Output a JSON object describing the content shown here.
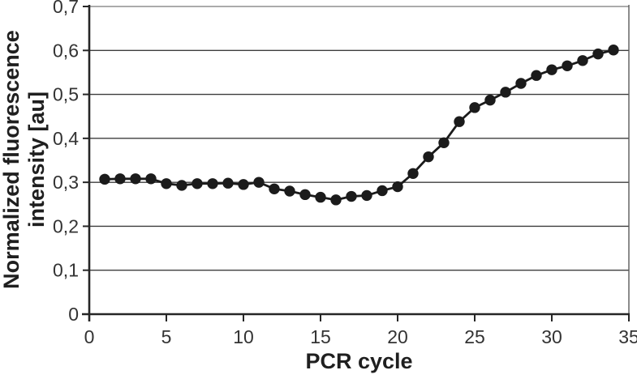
{
  "figure": {
    "background": "#ffffff"
  },
  "chart_data": {
    "type": "line",
    "title": "",
    "xlabel": "PCR cycle",
    "ylabel": "Normalized fluorescence intensity [au]",
    "ylabel_lines": [
      "Normalized fluorescence",
      "intensity [au]"
    ],
    "x": [
      1,
      2,
      3,
      4,
      5,
      6,
      7,
      8,
      9,
      10,
      11,
      12,
      13,
      14,
      15,
      16,
      17,
      18,
      19,
      20,
      21,
      22,
      23,
      24,
      25,
      26,
      27,
      28,
      29,
      30,
      31,
      32,
      33,
      34
    ],
    "y": [
      0.307,
      0.308,
      0.308,
      0.308,
      0.297,
      0.293,
      0.297,
      0.297,
      0.298,
      0.295,
      0.3,
      0.285,
      0.28,
      0.272,
      0.266,
      0.26,
      0.268,
      0.27,
      0.281,
      0.29,
      0.32,
      0.358,
      0.39,
      0.438,
      0.47,
      0.487,
      0.505,
      0.525,
      0.543,
      0.556,
      0.565,
      0.577,
      0.592,
      0.601
    ],
    "xlim": [
      0,
      35
    ],
    "ylim": [
      0,
      0.7
    ],
    "x_ticks": [
      0,
      5,
      10,
      15,
      20,
      25,
      30,
      35
    ],
    "x_tick_labels": [
      "0",
      "5",
      "10",
      "15",
      "20",
      "25",
      "30",
      "35"
    ],
    "y_ticks": [
      0,
      0.1,
      0.2,
      0.3,
      0.4,
      0.5,
      0.6,
      0.7
    ],
    "y_tick_labels": [
      "0",
      "0,1",
      "0,2",
      "0,3",
      "0,4",
      "0,5",
      "0,6",
      "0,7"
    ],
    "decimal_separator": ",",
    "grid": "horizontal",
    "legend": "none",
    "marker": "filled-circle",
    "line_color": "#1b1b1b",
    "marker_color": "#1b1b1b",
    "grid_color": "#3d3d3d",
    "frame_light_color": "#8f8f8f",
    "axis_color": "#262626",
    "tick_text_color": "#333333"
  }
}
